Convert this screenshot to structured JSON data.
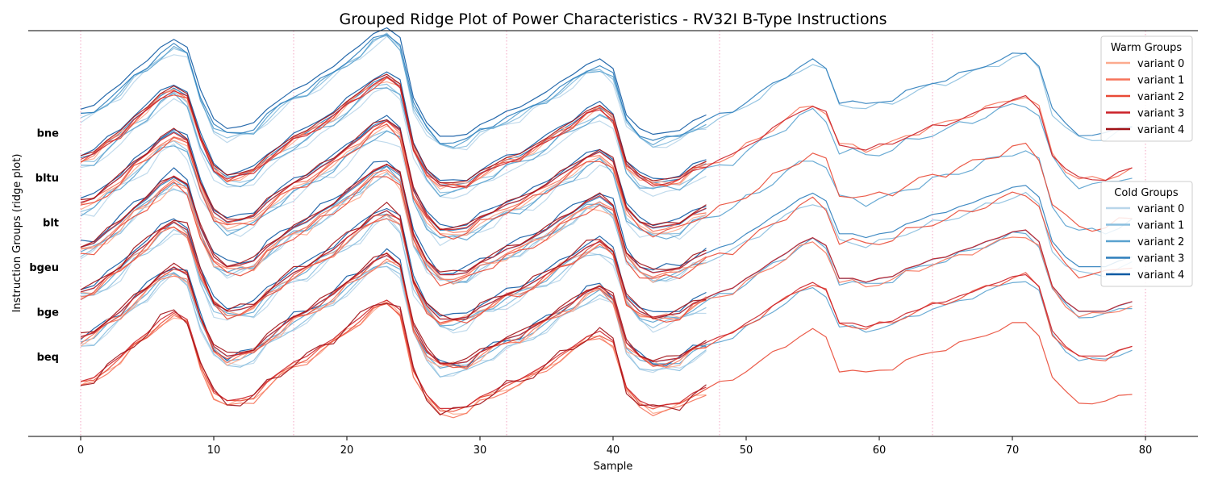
{
  "chart_data": {
    "type": "line",
    "title": "Grouped Ridge Plot of Power Characteristics - RV32I B-Type Instructions",
    "xlabel": "Sample",
    "ylabel": "Instruction Groups (ridge plot)",
    "xlim": [
      -4,
      84
    ],
    "xticks": [
      0,
      10,
      20,
      30,
      40,
      50,
      60,
      70,
      80
    ],
    "vlines": [
      0,
      16,
      32,
      48,
      64,
      80
    ],
    "y_tick_labels": [
      "beq",
      "bge",
      "bgeu",
      "blt",
      "bltu",
      "bne"
    ],
    "legend_placement": "right",
    "legends": [
      {
        "title": "Warm Groups",
        "entries": [
          "variant 0",
          "variant 1",
          "variant 2",
          "variant 3",
          "variant 4"
        ],
        "colors": [
          "#fcaa8e",
          "#f6735a",
          "#e94a36",
          "#cb2128",
          "#a01116"
        ]
      },
      {
        "title": "Cold Groups",
        "entries": [
          "variant 0",
          "variant 1",
          "variant 2",
          "variant 3",
          "variant 4"
        ],
        "colors": [
          "#b9d6ea",
          "#8bbfdf",
          "#5aa2cf",
          "#2e7ebc",
          "#0f5aa3"
        ]
      }
    ],
    "base_shape": [
      0.0,
      0.02,
      0.08,
      0.13,
      0.2,
      0.25,
      0.32,
      0.36,
      0.32,
      0.1,
      -0.05,
      -0.1,
      -0.09,
      -0.07,
      0.0,
      0.05,
      0.1,
      0.13,
      0.18,
      0.22,
      0.28,
      0.33,
      0.39,
      0.42,
      0.37,
      0.06,
      -0.07,
      -0.14,
      -0.14,
      -0.13,
      -0.08,
      -0.05,
      -0.01,
      0.01,
      0.05,
      0.09,
      0.14,
      0.18,
      0.23,
      0.26,
      0.21,
      -0.03,
      -0.1,
      -0.13,
      -0.12,
      -0.11,
      -0.06,
      -0.03,
      0.0,
      0.02,
      0.07,
      0.11,
      0.16,
      0.2,
      0.25,
      0.28,
      0.24,
      0.07,
      0.07,
      0.05,
      0.07,
      0.08,
      0.12,
      0.14,
      0.17,
      0.18,
      0.21,
      0.23,
      0.26,
      0.28,
      0.31,
      0.32,
      0.26,
      0.03,
      -0.05,
      -0.1,
      -0.1,
      -0.1,
      -0.07,
      -0.05
    ],
    "series": [
      {
        "group": "beq",
        "variant": 0,
        "baseline": 0.0,
        "scale": 1.0,
        "offset": 0.01,
        "wobble": 0.02,
        "length": 48
      },
      {
        "group": "beq",
        "variant": 1,
        "baseline": 0.0,
        "scale": 1.02,
        "offset": -0.01,
        "wobble": 0.015,
        "length": 48
      },
      {
        "group": "beq",
        "variant": 2,
        "baseline": 0.0,
        "scale": 0.98,
        "offset": 0.0,
        "wobble": 0.01,
        "length": 80
      },
      {
        "group": "beq",
        "variant": 3,
        "baseline": 0.0,
        "scale": 1.0,
        "offset": 0.0,
        "wobble": 0.0,
        "length": 48
      },
      {
        "group": "beq",
        "variant": 4,
        "baseline": 0.0,
        "scale": 1.04,
        "offset": -0.02,
        "wobble": 0.025,
        "length": 48
      },
      {
        "group": "bge",
        "variant": 0,
        "baseline": 1.0,
        "scale": 1.0,
        "offset": 0.01,
        "wobble": 0.03,
        "length": 48
      },
      {
        "group": "bge",
        "variant": 1,
        "baseline": 1.0,
        "scale": 0.98,
        "offset": 0.0,
        "wobble": 0.02,
        "length": 48
      },
      {
        "group": "bge",
        "variant": 2,
        "baseline": 1.0,
        "scale": 1.02,
        "offset": 0.0,
        "wobble": 0.015,
        "length": 80
      },
      {
        "group": "bge",
        "variant": 3,
        "baseline": 1.0,
        "scale": 1.0,
        "offset": 0.0,
        "wobble": 0.0,
        "length": 80
      },
      {
        "group": "bge",
        "variant": 4,
        "baseline": 1.0,
        "scale": 1.0,
        "offset": 0.0,
        "wobble": 0.01,
        "length": 48
      },
      {
        "group": "bgeu",
        "variant": 0,
        "baseline": 2.0,
        "scale": 1.0,
        "offset": 0.02,
        "wobble": 0.02,
        "length": 48
      },
      {
        "group": "bgeu",
        "variant": 1,
        "baseline": 2.0,
        "scale": 0.98,
        "offset": 0.0,
        "wobble": 0.015,
        "length": 80
      },
      {
        "group": "bgeu",
        "variant": 2,
        "baseline": 2.0,
        "scale": 1.02,
        "offset": -0.01,
        "wobble": 0.02,
        "length": 48
      },
      {
        "group": "bgeu",
        "variant": 3,
        "baseline": 2.0,
        "scale": 1.0,
        "offset": 0.0,
        "wobble": 0.0,
        "length": 80
      },
      {
        "group": "bgeu",
        "variant": 4,
        "baseline": 2.0,
        "scale": 1.03,
        "offset": 0.0,
        "wobble": 0.02,
        "length": 48
      },
      {
        "group": "blt",
        "variant": 0,
        "baseline": 3.0,
        "scale": 0.95,
        "offset": 0.0,
        "wobble": 0.03,
        "length": 48
      },
      {
        "group": "blt",
        "variant": 1,
        "baseline": 3.0,
        "scale": 1.0,
        "offset": 0.0,
        "wobble": 0.01,
        "length": 48
      },
      {
        "group": "blt",
        "variant": 2,
        "baseline": 3.0,
        "scale": 1.0,
        "offset": -0.03,
        "wobble": 0.02,
        "length": 80
      },
      {
        "group": "blt",
        "variant": 3,
        "baseline": 3.0,
        "scale": 1.02,
        "offset": 0.0,
        "wobble": 0.0,
        "length": 48
      },
      {
        "group": "blt",
        "variant": 4,
        "baseline": 3.0,
        "scale": 1.0,
        "offset": 0.0,
        "wobble": 0.01,
        "length": 48
      },
      {
        "group": "bltu",
        "variant": 0,
        "baseline": 4.0,
        "scale": 1.0,
        "offset": 0.0,
        "wobble": 0.01,
        "length": 48
      },
      {
        "group": "bltu",
        "variant": 1,
        "baseline": 4.0,
        "scale": 0.99,
        "offset": 0.01,
        "wobble": 0.015,
        "length": 48
      },
      {
        "group": "bltu",
        "variant": 2,
        "baseline": 4.0,
        "scale": 1.0,
        "offset": -0.02,
        "wobble": 0.02,
        "length": 80
      },
      {
        "group": "bltu",
        "variant": 3,
        "baseline": 4.0,
        "scale": 1.0,
        "offset": 0.0,
        "wobble": 0.0,
        "length": 48
      },
      {
        "group": "bltu",
        "variant": 4,
        "baseline": 4.0,
        "scale": 1.01,
        "offset": 0.0,
        "wobble": 0.01,
        "length": 48
      },
      {
        "group": "bne",
        "variant": 0,
        "baseline": 5.0,
        "scale": 1.0,
        "offset": 0.02,
        "wobble": 0.02,
        "length": 48
      },
      {
        "group": "bne",
        "variant": 1,
        "baseline": 5.0,
        "scale": 1.02,
        "offset": 0.01,
        "wobble": 0.015,
        "length": 80
      },
      {
        "group": "bne",
        "variant": 2,
        "baseline": 5.0,
        "scale": 0.98,
        "offset": 0.0,
        "wobble": 0.02,
        "length": 48
      },
      {
        "group": "bne",
        "variant": 3,
        "baseline": 5.0,
        "scale": 1.0,
        "offset": -0.01,
        "wobble": 0.01,
        "length": 80
      },
      {
        "group": "bne",
        "variant": 4,
        "baseline": 5.0,
        "scale": 1.0,
        "offset": 0.0,
        "wobble": 0.0,
        "length": 48
      }
    ]
  }
}
